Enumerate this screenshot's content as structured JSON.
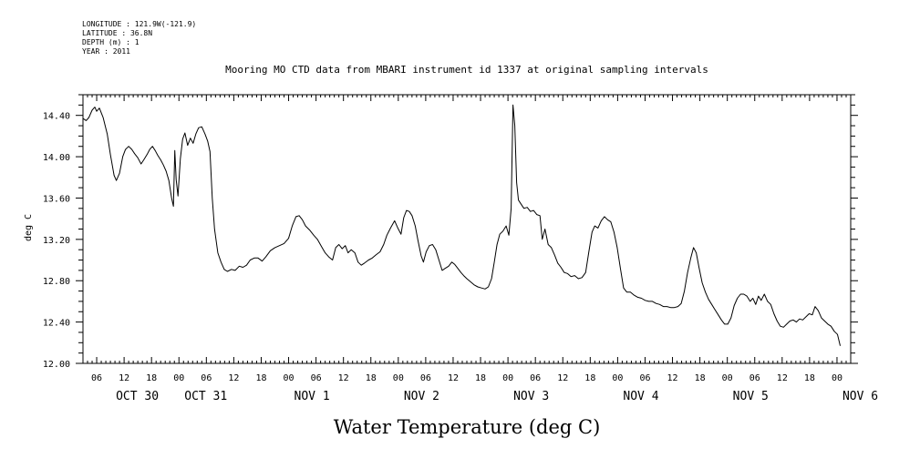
{
  "meta": {
    "longitude": "LONGITUDE : 121.9W(-121.9)",
    "latitude": "LATITUDE : 36.8N",
    "depth": "DEPTH (m) : 1",
    "year": "YEAR : 2011"
  },
  "chart_data": {
    "type": "line",
    "title": "Mooring MO CTD data from MBARI instrument id 1337 at original sampling intervals",
    "xlabel": "Water Temperature (deg C)",
    "ylabel": "deg C",
    "x_start": "2011-10-30T03:00",
    "x_end": "2011-11-06T03:00",
    "xlim_hours": [
      0,
      168
    ],
    "ylim": [
      12.0,
      14.6
    ],
    "y_ticks": [
      "12.00",
      "12.40",
      "12.80",
      "13.20",
      "13.60",
      "14.00",
      "14.40"
    ],
    "hour_labels": [
      "06",
      "12",
      "18",
      "00",
      "06",
      "12",
      "18",
      "00",
      "06",
      "12",
      "18",
      "00",
      "06",
      "12",
      "18",
      "00",
      "06",
      "12",
      "18",
      "00",
      "06",
      "12",
      "18",
      "00",
      "06",
      "12",
      "18",
      "00"
    ],
    "day_labels": [
      "OCT 30",
      "OCT 31",
      "NOV 1",
      "NOV 2",
      "NOV 3",
      "NOV 4",
      "NOV 5",
      "NOV 6"
    ],
    "series": [
      {
        "color": "#000000",
        "points": [
          [
            0,
            14.37
          ],
          [
            0.7,
            14.35
          ],
          [
            1.3,
            14.38
          ],
          [
            2,
            14.45
          ],
          [
            2.6,
            14.48
          ],
          [
            3,
            14.44
          ],
          [
            3.6,
            14.47
          ],
          [
            4.4,
            14.38
          ],
          [
            5.3,
            14.22
          ],
          [
            6,
            14.02
          ],
          [
            6.8,
            13.82
          ],
          [
            7.3,
            13.77
          ],
          [
            8,
            13.84
          ],
          [
            8.7,
            14.0
          ],
          [
            9.3,
            14.07
          ],
          [
            10,
            14.1
          ],
          [
            10.7,
            14.07
          ],
          [
            11.3,
            14.03
          ],
          [
            12,
            13.99
          ],
          [
            12.7,
            13.93
          ],
          [
            13.3,
            13.97
          ],
          [
            14,
            14.02
          ],
          [
            14.6,
            14.07
          ],
          [
            15.2,
            14.1
          ],
          [
            15.8,
            14.06
          ],
          [
            16.4,
            14.01
          ],
          [
            17,
            13.97
          ],
          [
            17.6,
            13.92
          ],
          [
            18.2,
            13.86
          ],
          [
            18.8,
            13.77
          ],
          [
            19.4,
            13.6
          ],
          [
            19.8,
            13.52
          ],
          [
            20.1,
            14.06
          ],
          [
            20.4,
            13.78
          ],
          [
            20.8,
            13.62
          ],
          [
            21.3,
            13.98
          ],
          [
            21.8,
            14.17
          ],
          [
            22.3,
            14.23
          ],
          [
            22.9,
            14.11
          ],
          [
            23.5,
            14.18
          ],
          [
            24.1,
            14.13
          ],
          [
            24.7,
            14.22
          ],
          [
            25.3,
            14.28
          ],
          [
            26,
            14.29
          ],
          [
            26.7,
            14.22
          ],
          [
            27.3,
            14.15
          ],
          [
            27.8,
            14.05
          ],
          [
            28.3,
            13.6
          ],
          [
            28.8,
            13.3
          ],
          [
            29.5,
            13.07
          ],
          [
            30.2,
            12.98
          ],
          [
            30.9,
            12.91
          ],
          [
            31.6,
            12.89
          ],
          [
            32.5,
            12.91
          ],
          [
            33.3,
            12.9
          ],
          [
            34.2,
            12.94
          ],
          [
            35,
            12.93
          ],
          [
            35.8,
            12.95
          ],
          [
            36.6,
            13.0
          ],
          [
            37.5,
            13.02
          ],
          [
            38.3,
            13.02
          ],
          [
            39.2,
            12.99
          ],
          [
            40,
            13.03
          ],
          [
            41,
            13.09
          ],
          [
            42,
            13.12
          ],
          [
            43,
            13.14
          ],
          [
            44,
            13.16
          ],
          [
            45,
            13.21
          ],
          [
            45.8,
            13.33
          ],
          [
            46.6,
            13.42
          ],
          [
            47.3,
            13.43
          ],
          [
            48,
            13.39
          ],
          [
            48.7,
            13.33
          ],
          [
            49.6,
            13.29
          ],
          [
            50.5,
            13.24
          ],
          [
            51.3,
            13.2
          ],
          [
            52.2,
            13.13
          ],
          [
            53,
            13.07
          ],
          [
            53.8,
            13.03
          ],
          [
            54.6,
            13.0
          ],
          [
            55.3,
            13.12
          ],
          [
            56,
            13.15
          ],
          [
            56.7,
            13.11
          ],
          [
            57.4,
            13.14
          ],
          [
            58,
            13.07
          ],
          [
            58.7,
            13.1
          ],
          [
            59.5,
            13.07
          ],
          [
            60.2,
            12.98
          ],
          [
            60.9,
            12.95
          ],
          [
            61.6,
            12.97
          ],
          [
            62.5,
            13.0
          ],
          [
            63.3,
            13.02
          ],
          [
            64.1,
            13.05
          ],
          [
            65,
            13.08
          ],
          [
            65.8,
            13.15
          ],
          [
            66.5,
            13.24
          ],
          [
            67.3,
            13.31
          ],
          [
            68.2,
            13.38
          ],
          [
            68.9,
            13.31
          ],
          [
            69.6,
            13.25
          ],
          [
            70.2,
            13.41
          ],
          [
            70.8,
            13.48
          ],
          [
            71.4,
            13.47
          ],
          [
            72,
            13.43
          ],
          [
            72.7,
            13.33
          ],
          [
            73.3,
            13.19
          ],
          [
            74,
            13.04
          ],
          [
            74.5,
            12.98
          ],
          [
            75.1,
            13.08
          ],
          [
            75.8,
            13.14
          ],
          [
            76.5,
            13.15
          ],
          [
            77.2,
            13.1
          ],
          [
            77.9,
            13.0
          ],
          [
            78.6,
            12.9
          ],
          [
            79.3,
            12.92
          ],
          [
            80,
            12.94
          ],
          [
            80.7,
            12.98
          ],
          [
            81.3,
            12.96
          ],
          [
            82,
            12.92
          ],
          [
            82.7,
            12.88
          ],
          [
            83.3,
            12.85
          ],
          [
            84,
            12.82
          ],
          [
            84.8,
            12.79
          ],
          [
            85.6,
            12.76
          ],
          [
            86.4,
            12.74
          ],
          [
            87.2,
            12.73
          ],
          [
            88,
            12.72
          ],
          [
            88.7,
            12.74
          ],
          [
            89.4,
            12.82
          ],
          [
            90,
            12.98
          ],
          [
            90.6,
            13.15
          ],
          [
            91.2,
            13.25
          ],
          [
            91.9,
            13.28
          ],
          [
            92.6,
            13.33
          ],
          [
            93.2,
            13.24
          ],
          [
            93.7,
            13.5
          ],
          [
            94.1,
            14.5
          ],
          [
            94.5,
            14.3
          ],
          [
            94.9,
            13.75
          ],
          [
            95.3,
            13.58
          ],
          [
            95.9,
            13.54
          ],
          [
            96.5,
            13.5
          ],
          [
            97.2,
            13.51
          ],
          [
            97.9,
            13.47
          ],
          [
            98.6,
            13.48
          ],
          [
            99.3,
            13.44
          ],
          [
            100,
            13.43
          ],
          [
            100.5,
            13.2
          ],
          [
            101.1,
            13.3
          ],
          [
            101.8,
            13.15
          ],
          [
            102.5,
            13.12
          ],
          [
            103.2,
            13.05
          ],
          [
            103.9,
            12.97
          ],
          [
            104.6,
            12.93
          ],
          [
            105.3,
            12.88
          ],
          [
            106,
            12.87
          ],
          [
            106.8,
            12.84
          ],
          [
            107.6,
            12.85
          ],
          [
            108.4,
            12.82
          ],
          [
            109.2,
            12.83
          ],
          [
            110,
            12.88
          ],
          [
            110.7,
            13.08
          ],
          [
            111.4,
            13.27
          ],
          [
            112,
            13.33
          ],
          [
            112.7,
            13.31
          ],
          [
            113.4,
            13.38
          ],
          [
            114.1,
            13.42
          ],
          [
            114.8,
            13.39
          ],
          [
            115.5,
            13.37
          ],
          [
            116.2,
            13.27
          ],
          [
            116.9,
            13.12
          ],
          [
            117.6,
            12.92
          ],
          [
            118.3,
            12.73
          ],
          [
            119,
            12.69
          ],
          [
            119.8,
            12.69
          ],
          [
            120.6,
            12.66
          ],
          [
            121.4,
            12.64
          ],
          [
            122.2,
            12.63
          ],
          [
            123,
            12.61
          ],
          [
            123.8,
            12.6
          ],
          [
            124.6,
            12.6
          ],
          [
            125.4,
            12.58
          ],
          [
            126.2,
            12.57
          ],
          [
            127,
            12.55
          ],
          [
            127.8,
            12.55
          ],
          [
            128.6,
            12.54
          ],
          [
            129.4,
            12.54
          ],
          [
            130.2,
            12.55
          ],
          [
            130.9,
            12.58
          ],
          [
            131.6,
            12.7
          ],
          [
            132.3,
            12.88
          ],
          [
            133,
            13.02
          ],
          [
            133.6,
            13.12
          ],
          [
            134.2,
            13.07
          ],
          [
            134.8,
            12.93
          ],
          [
            135.5,
            12.78
          ],
          [
            136.2,
            12.69
          ],
          [
            136.9,
            12.62
          ],
          [
            137.6,
            12.57
          ],
          [
            138.3,
            12.52
          ],
          [
            139,
            12.47
          ],
          [
            139.7,
            12.42
          ],
          [
            140.4,
            12.38
          ],
          [
            141.1,
            12.38
          ],
          [
            141.8,
            12.44
          ],
          [
            142.5,
            12.56
          ],
          [
            143.2,
            12.63
          ],
          [
            143.9,
            12.67
          ],
          [
            144.6,
            12.67
          ],
          [
            145.3,
            12.65
          ],
          [
            146,
            12.6
          ],
          [
            146.6,
            12.63
          ],
          [
            147.2,
            12.57
          ],
          [
            147.8,
            12.65
          ],
          [
            148.4,
            12.61
          ],
          [
            149.1,
            12.67
          ],
          [
            149.8,
            12.6
          ],
          [
            150.5,
            12.57
          ],
          [
            151.2,
            12.48
          ],
          [
            151.9,
            12.41
          ],
          [
            152.6,
            12.36
          ],
          [
            153.3,
            12.35
          ],
          [
            154,
            12.38
          ],
          [
            154.7,
            12.41
          ],
          [
            155.4,
            12.42
          ],
          [
            156.1,
            12.4
          ],
          [
            156.8,
            12.43
          ],
          [
            157.5,
            12.42
          ],
          [
            158.2,
            12.45
          ],
          [
            158.9,
            12.48
          ],
          [
            159.6,
            12.47
          ],
          [
            160.2,
            12.55
          ],
          [
            160.9,
            12.51
          ],
          [
            161.6,
            12.44
          ],
          [
            162.3,
            12.41
          ],
          [
            163,
            12.38
          ],
          [
            163.7,
            12.36
          ],
          [
            164.4,
            12.31
          ],
          [
            165.1,
            12.28
          ],
          [
            165.7,
            12.17
          ]
        ]
      }
    ]
  }
}
